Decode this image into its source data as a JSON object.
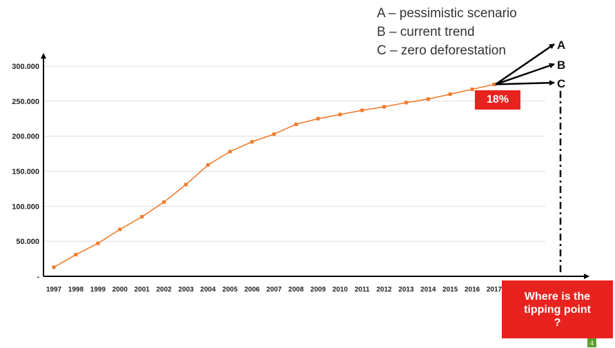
{
  "chart_data": {
    "type": "line",
    "categories": [
      "1997",
      "1998",
      "1999",
      "2000",
      "2001",
      "2002",
      "2003",
      "2004",
      "2005",
      "2006",
      "2007",
      "2008",
      "2009",
      "2010",
      "2011",
      "2012",
      "2013",
      "2014",
      "2015",
      "2016",
      "2017"
    ],
    "values": [
      13000,
      31000,
      47000,
      67000,
      85000,
      106000,
      131000,
      159000,
      178000,
      192000,
      203000,
      217000,
      225000,
      231000,
      237000,
      242000,
      248000,
      253000,
      260000,
      267000,
      274000
    ],
    "y_tick_labels": [
      "-",
      "50.000",
      "100.000",
      "150.000",
      "200.000",
      "250.000",
      "300.000"
    ],
    "y_ticks": [
      0,
      50000,
      100000,
      150000,
      200000,
      250000,
      300000
    ],
    "ylim": [
      0,
      320000
    ],
    "grid": true,
    "colors": {
      "series": "#f07b2c",
      "grid": "#dddddd",
      "axis": "#000000",
      "accent": "#e8231f"
    },
    "scenarios": [
      {
        "letter": "A",
        "description": "A – pessimistic scenario"
      },
      {
        "letter": "B",
        "description": "B – current trend"
      },
      {
        "letter": "C",
        "description": "C – zero deforestation"
      }
    ],
    "annotations": {
      "percent_badge": "18%",
      "tipping_point": [
        "Where is the",
        "tipping point",
        "?"
      ]
    }
  },
  "slide_number": "4"
}
